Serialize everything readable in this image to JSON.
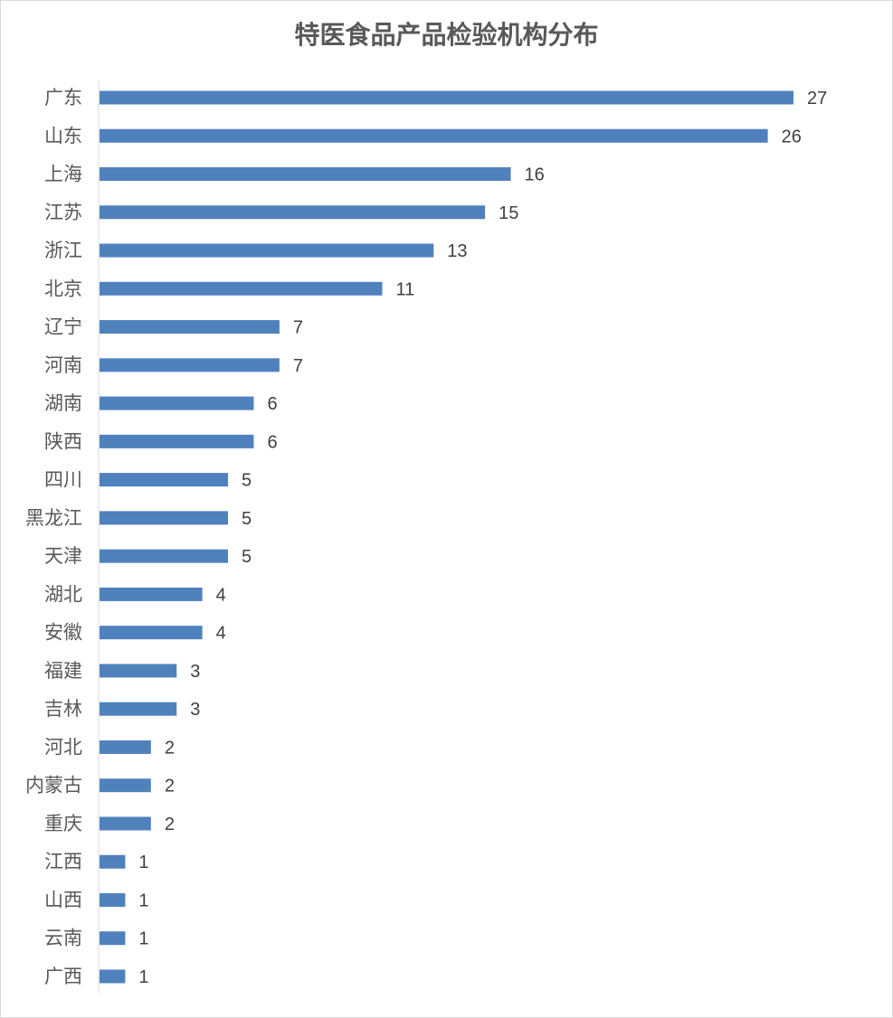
{
  "chart_data": {
    "type": "bar",
    "orientation": "horizontal",
    "title": "特医食品产品检验机构分布",
    "categories": [
      "广东",
      "山东",
      "上海",
      "江苏",
      "浙江",
      "北京",
      "辽宁",
      "河南",
      "湖南",
      "陕西",
      "四川",
      "黑龙江",
      "天津",
      "湖北",
      "安徽",
      "福建",
      "吉林",
      "河北",
      "内蒙古",
      "重庆",
      "江西",
      "山西",
      "云南",
      "广西"
    ],
    "values": [
      27,
      26,
      16,
      15,
      13,
      11,
      7,
      7,
      6,
      6,
      5,
      5,
      5,
      4,
      4,
      3,
      3,
      2,
      2,
      2,
      1,
      1,
      1,
      1
    ],
    "xlim": [
      0,
      27
    ],
    "grid": false,
    "data_labels": true,
    "legend": "none",
    "colors": {
      "bar": "#4f81bd",
      "text": "#595959"
    }
  }
}
